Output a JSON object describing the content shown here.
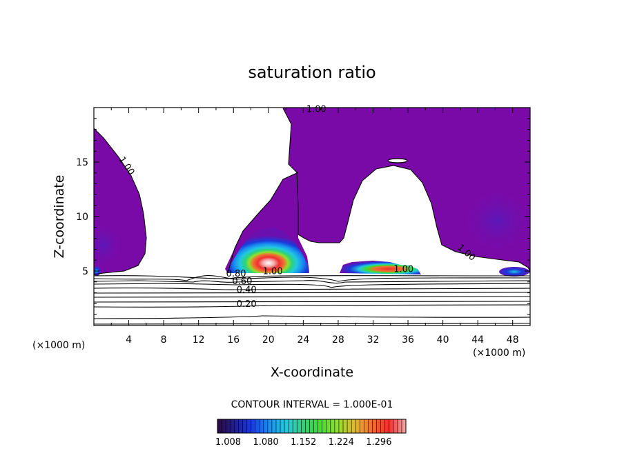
{
  "chart_data": {
    "type": "heatmap",
    "title": "saturation ratio",
    "xlabel": "X-coordinate",
    "ylabel": "Z-coordinate",
    "x_unit": "(×1000 m)",
    "xlim": [
      0,
      50
    ],
    "ylim": [
      0,
      20
    ],
    "x_ticks": [
      4,
      8,
      12,
      16,
      20,
      24,
      28,
      32,
      36,
      40,
      44,
      48
    ],
    "y_ticks": [
      5,
      10,
      15
    ],
    "contour_labels": [
      {
        "text": "1.00",
        "x": 25.5,
        "z": 19.6,
        "rotate": 0
      },
      {
        "text": "1.00",
        "x": 3.5,
        "z": 14.5,
        "rotate": 55
      },
      {
        "text": "1.00",
        "x": 42.5,
        "z": 6.5,
        "rotate": 40
      },
      {
        "text": "1.00",
        "x": 20.5,
        "z": 4.7,
        "rotate": 0
      },
      {
        "text": "1.00",
        "x": 35.5,
        "z": 4.9,
        "rotate": 0
      },
      {
        "text": "0.80",
        "x": 16.3,
        "z": 4.5,
        "rotate": 0
      },
      {
        "text": "0.60",
        "x": 17.0,
        "z": 3.8,
        "rotate": 0
      },
      {
        "text": "0.40",
        "x": 17.5,
        "z": 3.0,
        "rotate": 0
      },
      {
        "text": "0.20",
        "x": 17.5,
        "z": 1.7,
        "rotate": 0
      }
    ],
    "contour_interval_text": "CONTOUR INTERVAL = 1.000E-01",
    "colorbar": {
      "labels": [
        "1.008",
        "1.080",
        "1.152",
        "1.224",
        "1.296"
      ],
      "colors": [
        "#2a0a45",
        "#20208a",
        "#1a3adb",
        "#1a8ef0",
        "#21c9e0",
        "#2dd27a",
        "#3fe028",
        "#90e030",
        "#e0b830",
        "#f07030",
        "#ee3030",
        "#f4a8a8"
      ]
    }
  }
}
